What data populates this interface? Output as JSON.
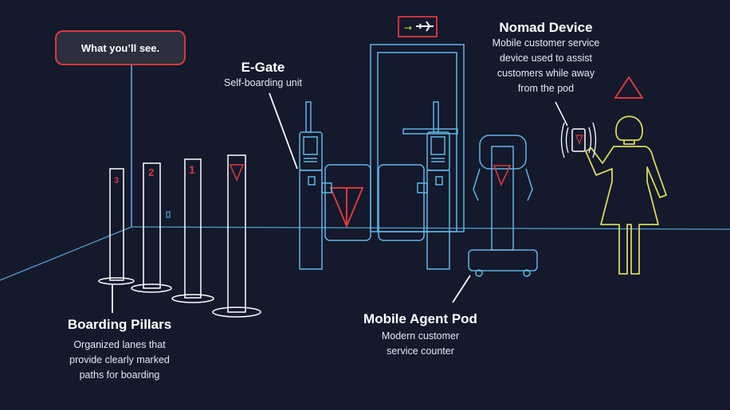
{
  "colors": {
    "background": "#14192c",
    "line_blue": "#5fb6e4",
    "accent_red": "#d9393c",
    "person_yellow": "#d8d85a"
  },
  "callout": {
    "text": "What you’ll see."
  },
  "exit_sign": {
    "arrow": "→",
    "icon": "airplane-icon"
  },
  "pillars": {
    "numbers": [
      "3",
      "2",
      "1"
    ]
  },
  "labels": {
    "egate": {
      "title": "E-Gate",
      "desc": "Self-boarding unit"
    },
    "nomad": {
      "title": "Nomad Device",
      "desc_lines": [
        "Mobile customer service",
        "device used to assist",
        "customers while away",
        "from the pod"
      ]
    },
    "pillars": {
      "title": "Boarding Pillars",
      "desc_lines": [
        "Organized lanes that",
        "provide clearly marked",
        "paths for boarding"
      ]
    },
    "pod": {
      "title": "Mobile Agent Pod",
      "desc_lines": [
        "Modern customer",
        "service counter"
      ]
    }
  }
}
